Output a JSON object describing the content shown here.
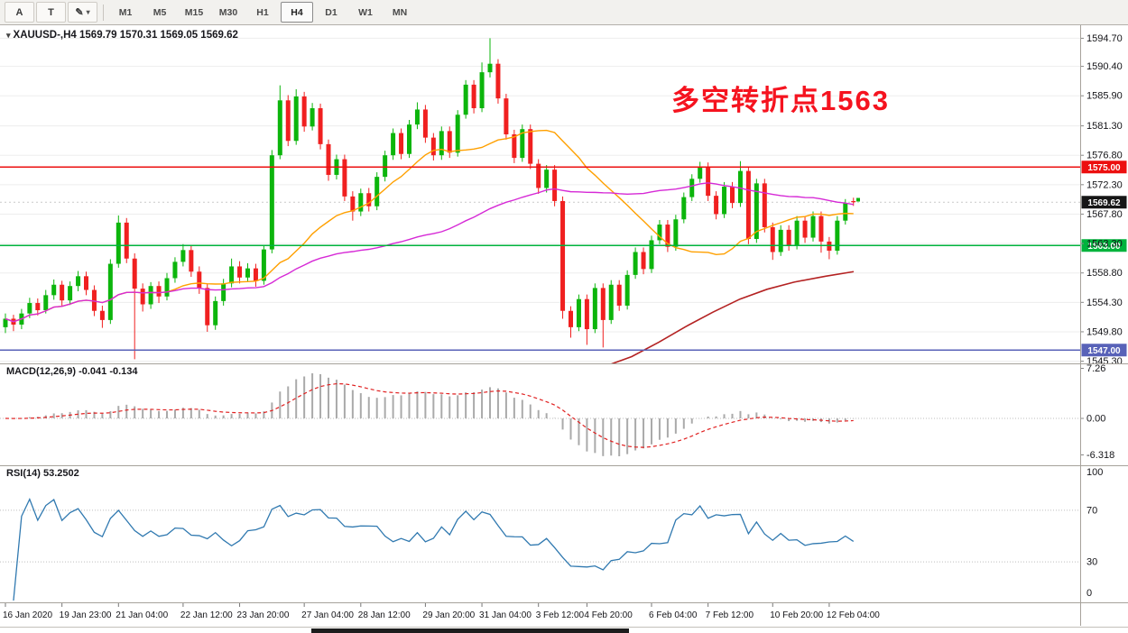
{
  "toolbar": {
    "tools": [
      {
        "label": "A"
      },
      {
        "label": "T"
      },
      {
        "label": "✎"
      }
    ],
    "caret": "▾",
    "timeframes": [
      {
        "label": "M1"
      },
      {
        "label": "M5"
      },
      {
        "label": "M15"
      },
      {
        "label": "M30"
      },
      {
        "label": "H1"
      },
      {
        "label": "H4"
      },
      {
        "label": "D1"
      },
      {
        "label": "W1"
      },
      {
        "label": "MN"
      }
    ]
  },
  "chart": {
    "symbol_caret": "▾",
    "symbol_label": "XAUUSD-,H4  1569.79 1570.31 1569.05 1569.62",
    "annotation": {
      "text": "多空转折点1563",
      "color": "#f5131f"
    },
    "levels": [
      {
        "price": 1575.0,
        "label": "1575.00",
        "color": "#ec0f0f"
      },
      {
        "price": 1563.0,
        "label": "1563.00",
        "color": "#00b33c"
      },
      {
        "price": 1547.0,
        "label": "1547.00",
        "color": "#5862b8"
      }
    ],
    "current_price": {
      "value": 1569.62,
      "label": "1569.62",
      "tag_bg": "#161616"
    },
    "price_axis": [
      "1594.70",
      "1590.40",
      "1585.90",
      "1581.30",
      "1576.80",
      "1572.30",
      "1567.80",
      "1563.30",
      "1558.80",
      "1554.30",
      "1549.80",
      "1545.30"
    ],
    "time_axis": [
      {
        "label": "16 Jan 2020",
        "i": 0
      },
      {
        "label": "19 Jan 23:00",
        "i": 7
      },
      {
        "label": "21 Jan 04:00",
        "i": 14
      },
      {
        "label": "22 Jan 12:00",
        "i": 22
      },
      {
        "label": "23 Jan 20:00",
        "i": 29
      },
      {
        "label": "27 Jan 04:00",
        "i": 37
      },
      {
        "label": "28 Jan 12:00",
        "i": 44
      },
      {
        "label": "29 Jan 20:00",
        "i": 52
      },
      {
        "label": "31 Jan 04:00",
        "i": 59
      },
      {
        "label": "3 Feb 12:00",
        "i": 66
      },
      {
        "label": "4 Feb 20:00",
        "i": 72
      },
      {
        "label": "6 Feb 04:00",
        "i": 80
      },
      {
        "label": "7 Feb 12:00",
        "i": 87
      },
      {
        "label": "10 Feb 20:00",
        "i": 95
      },
      {
        "label": "12 Feb 04:00",
        "i": 102
      }
    ]
  },
  "indicators": {
    "macd": {
      "label": "MACD(12,26,9) -0.041 -0.134",
      "axis": [
        "7.26",
        "0.00",
        "-6.318"
      ]
    },
    "rsi": {
      "label": "RSI(14) 53.2502",
      "axis": [
        "100",
        "70",
        "30",
        "0"
      ],
      "levels": [
        70,
        30
      ]
    }
  },
  "colors": {
    "up": "#0cb50c",
    "down": "#f02020",
    "ma_fast": "#ffa000",
    "ma_slow": "#d62ad6",
    "ma_long": "#b42222",
    "macd_hist": "#aaaaaa",
    "macd_signal": "#e02020",
    "rsi_line": "#3079b0",
    "grid": "#ededed",
    "separator": "#a6a29b"
  },
  "chart_data": {
    "type": "candlestick",
    "symbol": "XAUUSD-",
    "timeframe": "H4",
    "current_ohlc": {
      "open": 1569.79,
      "high": 1570.31,
      "low": 1569.05,
      "close": 1569.62
    },
    "ohlc": [
      [
        1550.5,
        1552.6,
        1549.6,
        1551.8
      ],
      [
        1551.8,
        1552.4,
        1549.9,
        1550.9
      ],
      [
        1550.9,
        1553.3,
        1550.2,
        1552.6
      ],
      [
        1552.6,
        1555.0,
        1551.9,
        1554.2
      ],
      [
        1554.2,
        1554.9,
        1552.3,
        1553.1
      ],
      [
        1553.1,
        1556.2,
        1552.6,
        1555.4
      ],
      [
        1555.4,
        1557.8,
        1554.7,
        1557.0
      ],
      [
        1557.0,
        1557.6,
        1553.8,
        1554.6
      ],
      [
        1554.6,
        1557.5,
        1553.9,
        1556.8
      ],
      [
        1556.8,
        1559.1,
        1556.0,
        1558.3
      ],
      [
        1558.3,
        1559.0,
        1555.4,
        1556.2
      ],
      [
        1556.2,
        1556.9,
        1552.2,
        1553.0
      ],
      [
        1553.0,
        1553.8,
        1550.4,
        1551.6
      ],
      [
        1551.6,
        1560.9,
        1551.0,
        1560.2
      ],
      [
        1560.2,
        1567.6,
        1559.6,
        1566.5
      ],
      [
        1566.5,
        1567.2,
        1560.3,
        1561.0
      ],
      [
        1561.0,
        1561.8,
        1545.6,
        1556.4
      ],
      [
        1556.4,
        1557.2,
        1552.9,
        1554.0
      ],
      [
        1554.0,
        1557.4,
        1553.3,
        1556.8
      ],
      [
        1556.8,
        1557.5,
        1554.2,
        1555.2
      ],
      [
        1555.2,
        1558.8,
        1554.6,
        1558.0
      ],
      [
        1558.0,
        1561.2,
        1557.3,
        1560.5
      ],
      [
        1560.5,
        1563.2,
        1559.8,
        1562.3
      ],
      [
        1562.3,
        1563.0,
        1558.2,
        1559.0
      ],
      [
        1559.0,
        1559.8,
        1555.6,
        1556.5
      ],
      [
        1556.5,
        1557.1,
        1549.8,
        1550.8
      ],
      [
        1550.8,
        1555.2,
        1550.1,
        1554.5
      ],
      [
        1554.5,
        1557.9,
        1553.8,
        1557.2
      ],
      [
        1557.2,
        1561.0,
        1556.6,
        1559.8
      ],
      [
        1559.8,
        1560.6,
        1557.2,
        1558.1
      ],
      [
        1558.1,
        1560.3,
        1557.4,
        1559.5
      ],
      [
        1559.5,
        1560.2,
        1556.7,
        1557.6
      ],
      [
        1557.6,
        1563.1,
        1557.0,
        1562.4
      ],
      [
        1562.4,
        1577.6,
        1561.8,
        1576.8
      ],
      [
        1576.8,
        1587.5,
        1576.2,
        1585.2
      ],
      [
        1585.2,
        1586.0,
        1578.2,
        1579.0
      ],
      [
        1579.0,
        1586.9,
        1578.4,
        1585.8
      ],
      [
        1585.8,
        1586.5,
        1580.4,
        1581.2
      ],
      [
        1581.2,
        1584.8,
        1580.6,
        1584.0
      ],
      [
        1584.0,
        1584.7,
        1577.7,
        1578.5
      ],
      [
        1578.5,
        1579.2,
        1572.9,
        1573.8
      ],
      [
        1573.8,
        1576.9,
        1573.1,
        1576.2
      ],
      [
        1576.2,
        1576.9,
        1569.8,
        1570.5
      ],
      [
        1570.5,
        1571.3,
        1566.8,
        1568.2
      ],
      [
        1568.2,
        1571.7,
        1567.5,
        1571.0
      ],
      [
        1571.0,
        1571.8,
        1568.2,
        1569.0
      ],
      [
        1569.0,
        1574.2,
        1568.4,
        1573.5
      ],
      [
        1573.5,
        1577.5,
        1572.8,
        1576.8
      ],
      [
        1576.8,
        1580.9,
        1576.1,
        1580.2
      ],
      [
        1580.2,
        1580.9,
        1576.2,
        1577.0
      ],
      [
        1577.0,
        1582.2,
        1576.4,
        1581.5
      ],
      [
        1581.5,
        1584.9,
        1580.8,
        1583.8
      ],
      [
        1583.8,
        1584.5,
        1578.7,
        1579.5
      ],
      [
        1579.5,
        1580.2,
        1576.0,
        1576.8
      ],
      [
        1576.8,
        1581.2,
        1576.1,
        1580.5
      ],
      [
        1580.5,
        1581.2,
        1576.4,
        1577.2
      ],
      [
        1577.2,
        1583.7,
        1576.6,
        1583.0
      ],
      [
        1583.0,
        1588.3,
        1582.4,
        1587.6
      ],
      [
        1587.6,
        1588.3,
        1583.2,
        1584.0
      ],
      [
        1584.0,
        1591.0,
        1583.4,
        1589.5
      ],
      [
        1589.5,
        1594.7,
        1588.7,
        1590.8
      ],
      [
        1590.8,
        1591.5,
        1584.7,
        1585.5
      ],
      [
        1585.5,
        1586.2,
        1579.2,
        1580.0
      ],
      [
        1580.0,
        1580.7,
        1575.6,
        1576.4
      ],
      [
        1576.4,
        1581.5,
        1575.8,
        1580.8
      ],
      [
        1580.8,
        1581.5,
        1574.7,
        1575.5
      ],
      [
        1575.5,
        1576.2,
        1570.9,
        1571.8
      ],
      [
        1571.8,
        1575.3,
        1571.1,
        1574.6
      ],
      [
        1574.6,
        1575.3,
        1569.0,
        1569.8
      ],
      [
        1569.8,
        1570.5,
        1551.8,
        1553.0
      ],
      [
        1553.0,
        1553.7,
        1548.9,
        1550.5
      ],
      [
        1550.5,
        1555.5,
        1549.9,
        1554.8
      ],
      [
        1554.8,
        1555.5,
        1547.8,
        1550.2
      ],
      [
        1550.2,
        1557.2,
        1549.6,
        1556.5
      ],
      [
        1556.5,
        1557.2,
        1547.4,
        1551.6
      ],
      [
        1551.6,
        1557.7,
        1551.0,
        1557.0
      ],
      [
        1557.0,
        1557.7,
        1553.0,
        1553.8
      ],
      [
        1553.8,
        1559.2,
        1553.2,
        1558.5
      ],
      [
        1558.5,
        1562.7,
        1557.9,
        1562.0
      ],
      [
        1562.0,
        1562.7,
        1558.6,
        1559.4
      ],
      [
        1559.4,
        1564.5,
        1558.8,
        1563.8
      ],
      [
        1563.8,
        1566.9,
        1563.2,
        1566.2
      ],
      [
        1566.2,
        1566.9,
        1562.0,
        1562.8
      ],
      [
        1562.8,
        1567.7,
        1562.2,
        1567.0
      ],
      [
        1567.0,
        1571.1,
        1566.4,
        1570.4
      ],
      [
        1570.4,
        1573.9,
        1569.8,
        1573.2
      ],
      [
        1573.2,
        1575.8,
        1572.6,
        1575.0
      ],
      [
        1575.0,
        1575.7,
        1569.8,
        1570.6
      ],
      [
        1570.6,
        1571.3,
        1567.0,
        1567.8
      ],
      [
        1567.8,
        1572.7,
        1567.2,
        1572.0
      ],
      [
        1572.0,
        1572.7,
        1568.7,
        1569.5
      ],
      [
        1569.5,
        1575.9,
        1568.9,
        1574.4
      ],
      [
        1574.4,
        1575.1,
        1563.2,
        1564.0
      ],
      [
        1564.0,
        1573.2,
        1563.4,
        1572.5
      ],
      [
        1572.5,
        1573.2,
        1565.0,
        1565.8
      ],
      [
        1565.8,
        1566.5,
        1560.8,
        1562.0
      ],
      [
        1562.0,
        1566.1,
        1561.4,
        1565.4
      ],
      [
        1565.4,
        1566.1,
        1562.2,
        1563.0
      ],
      [
        1563.0,
        1567.5,
        1562.4,
        1566.8
      ],
      [
        1566.8,
        1567.5,
        1563.4,
        1564.2
      ],
      [
        1564.2,
        1568.2,
        1563.6,
        1567.5
      ],
      [
        1567.5,
        1568.2,
        1561.9,
        1563.6
      ],
      [
        1563.6,
        1564.3,
        1560.9,
        1562.2
      ],
      [
        1562.2,
        1567.5,
        1561.6,
        1566.8
      ],
      [
        1566.8,
        1570.1,
        1566.2,
        1569.5
      ],
      [
        1569.79,
        1570.31,
        1569.05,
        1569.62
      ]
    ],
    "moving_averages": [
      {
        "name": "fast",
        "type": "sma",
        "period": 21
      },
      {
        "name": "slow",
        "type": "sma",
        "period": 55
      }
    ],
    "long_ma_points": [
      [
        672,
        1544.6
      ],
      [
        700,
        1546.0
      ],
      [
        730,
        1548.2
      ],
      [
        760,
        1550.6
      ],
      [
        790,
        1552.8
      ],
      [
        820,
        1554.8
      ],
      [
        850,
        1556.3
      ],
      [
        880,
        1557.4
      ],
      [
        915,
        1558.3
      ],
      [
        946,
        1559.0
      ]
    ]
  }
}
